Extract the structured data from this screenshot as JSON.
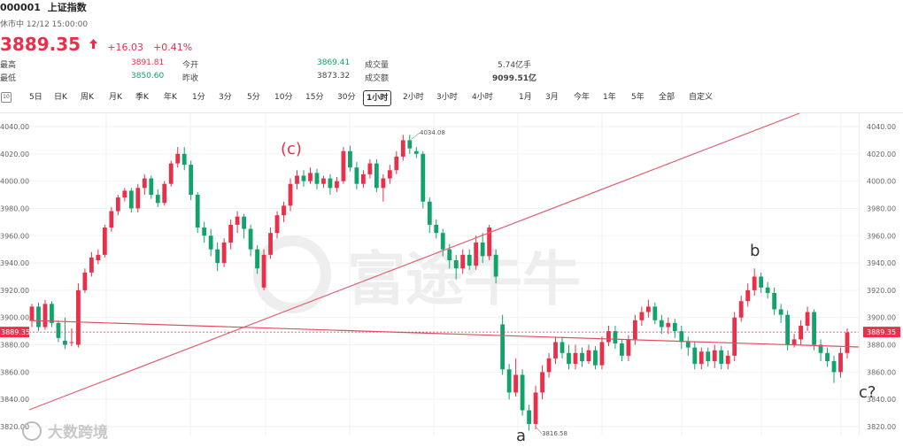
{
  "header": {
    "code": "000001",
    "name": "上证指数",
    "status": "休市中 12/12 15:00:00",
    "price": "3889.35",
    "change": "+16.03",
    "change_pct": "+0.41%",
    "arrow": "arrow-up-icon"
  },
  "stats": {
    "high_label": "最高",
    "high_value": "3891.81",
    "low_label": "最低",
    "low_value": "3850.60",
    "open_label": "今开",
    "open_value": "3869.41",
    "prev_label": "昨收",
    "prev_value": "3873.32",
    "volume_label": "成交量",
    "volume_value": "5.74亿手",
    "amount_label": "成交额",
    "amount_value": "9099.51亿"
  },
  "tabs": [
    "5日",
    "日K",
    "周K",
    "月K",
    "季K",
    "年K",
    "1分",
    "3分",
    "5分",
    "10分",
    "15分",
    "30分",
    "1小时",
    "2小时",
    "3小时",
    "4小时",
    "1月",
    "3月",
    "今年",
    "1年",
    "5年",
    "全部",
    "自定义"
  ],
  "active_tab": "1小时",
  "watermark": {
    "main": "富途牛牛",
    "bottom": "大数跨境"
  },
  "chart_data": {
    "type": "candlestick",
    "ylim": [
      3816,
      4045
    ],
    "yticks": [
      4040.0,
      4020.0,
      4000.0,
      3980.0,
      3960.0,
      3940.0,
      3920.0,
      3900.0,
      3880.0,
      3860.0,
      3840.0,
      3820.0
    ],
    "last_price_label": "3889.35",
    "high_marker": "4034.08",
    "low_marker": "3816.58",
    "annotations": [
      "(c)",
      "b",
      "a",
      "c?"
    ],
    "up_color": "#e8304a",
    "down_color": "#12a36a",
    "candles": [
      {
        "o": 3898,
        "c": 3908,
        "h": 3910,
        "l": 3893
      },
      {
        "o": 3908,
        "c": 3893,
        "h": 3911,
        "l": 3890
      },
      {
        "o": 3893,
        "c": 3910,
        "h": 3913,
        "l": 3891
      },
      {
        "o": 3910,
        "c": 3896,
        "h": 3912,
        "l": 3893
      },
      {
        "o": 3896,
        "c": 3885,
        "h": 3898,
        "l": 3882
      },
      {
        "o": 3883,
        "c": 3880,
        "h": 3900,
        "l": 3877
      },
      {
        "o": 3882,
        "c": 3882,
        "h": 3892,
        "l": 3879
      },
      {
        "o": 3880,
        "c": 3920,
        "h": 3925,
        "l": 3878
      },
      {
        "o": 3920,
        "c": 3933,
        "h": 3936,
        "l": 3918
      },
      {
        "o": 3933,
        "c": 3944,
        "h": 3948,
        "l": 3930
      },
      {
        "o": 3942,
        "c": 3946,
        "h": 3950,
        "l": 3939
      },
      {
        "o": 3946,
        "c": 3966,
        "h": 3968,
        "l": 3944
      },
      {
        "o": 3966,
        "c": 3978,
        "h": 3981,
        "l": 3963
      },
      {
        "o": 3978,
        "c": 3988,
        "h": 3990,
        "l": 3975
      },
      {
        "o": 3988,
        "c": 3993,
        "h": 3995,
        "l": 3985
      },
      {
        "o": 3993,
        "c": 3980,
        "h": 3995,
        "l": 3977
      },
      {
        "o": 3980,
        "c": 3995,
        "h": 3998,
        "l": 3977
      },
      {
        "o": 3995,
        "c": 4002,
        "h": 4005,
        "l": 3990
      },
      {
        "o": 4002,
        "c": 3990,
        "h": 4004,
        "l": 3987
      },
      {
        "o": 3990,
        "c": 3984,
        "h": 3994,
        "l": 3981
      },
      {
        "o": 3984,
        "c": 3998,
        "h": 4000,
        "l": 3982
      },
      {
        "o": 3998,
        "c": 4013,
        "h": 4015,
        "l": 3996
      },
      {
        "o": 4013,
        "c": 4020,
        "h": 4025,
        "l": 4010
      },
      {
        "o": 4020,
        "c": 4012,
        "h": 4025,
        "l": 4008
      },
      {
        "o": 4012,
        "c": 3990,
        "h": 4015,
        "l": 3986
      },
      {
        "o": 3990,
        "c": 3966,
        "h": 3992,
        "l": 3962
      },
      {
        "o": 3966,
        "c": 3960,
        "h": 3970,
        "l": 3955
      },
      {
        "o": 3960,
        "c": 3950,
        "h": 3965,
        "l": 3945
      },
      {
        "o": 3950,
        "c": 3940,
        "h": 3955,
        "l": 3934
      },
      {
        "o": 3940,
        "c": 3955,
        "h": 3958,
        "l": 3937
      },
      {
        "o": 3955,
        "c": 3968,
        "h": 3972,
        "l": 3950
      },
      {
        "o": 3968,
        "c": 3974,
        "h": 3978,
        "l": 3962
      },
      {
        "o": 3974,
        "c": 3965,
        "h": 3976,
        "l": 3958
      },
      {
        "o": 3965,
        "c": 3950,
        "h": 3968,
        "l": 3945
      },
      {
        "o": 3950,
        "c": 3936,
        "h": 3953,
        "l": 3932
      },
      {
        "o": 3922,
        "c": 3946,
        "h": 3950,
        "l": 3920
      },
      {
        "o": 3946,
        "c": 3962,
        "h": 3966,
        "l": 3943
      },
      {
        "o": 3962,
        "c": 3975,
        "h": 3978,
        "l": 3958
      },
      {
        "o": 3975,
        "c": 3982,
        "h": 3985,
        "l": 3970
      },
      {
        "o": 3982,
        "c": 3998,
        "h": 4002,
        "l": 3978
      },
      {
        "o": 3998,
        "c": 4004,
        "h": 4008,
        "l": 3994
      },
      {
        "o": 4004,
        "c": 4000,
        "h": 4008,
        "l": 3996
      },
      {
        "o": 4000,
        "c": 4006,
        "h": 4010,
        "l": 3998
      },
      {
        "o": 4006,
        "c": 3998,
        "h": 4009,
        "l": 3994
      },
      {
        "o": 3998,
        "c": 4002,
        "h": 4004,
        "l": 3995
      },
      {
        "o": 4002,
        "c": 3995,
        "h": 4005,
        "l": 3990
      },
      {
        "o": 3995,
        "c": 4000,
        "h": 4003,
        "l": 3992
      },
      {
        "o": 4000,
        "c": 4022,
        "h": 4025,
        "l": 3998
      },
      {
        "o": 4022,
        "c": 4010,
        "h": 4026,
        "l": 4007
      },
      {
        "o": 4010,
        "c": 3998,
        "h": 4014,
        "l": 3994
      },
      {
        "o": 3998,
        "c": 4005,
        "h": 4008,
        "l": 3995
      },
      {
        "o": 4005,
        "c": 4013,
        "h": 4016,
        "l": 4002
      },
      {
        "o": 4013,
        "c": 3995,
        "h": 4016,
        "l": 3992
      },
      {
        "o": 3995,
        "c": 4002,
        "h": 4005,
        "l": 3985
      },
      {
        "o": 4002,
        "c": 4008,
        "h": 4012,
        "l": 3998
      },
      {
        "o": 4008,
        "c": 4018,
        "h": 4022,
        "l": 4005
      },
      {
        "o": 4018,
        "c": 4030,
        "h": 4034,
        "l": 4015
      },
      {
        "o": 4030,
        "c": 4024,
        "h": 4034,
        "l": 4020
      },
      {
        "o": 4022,
        "c": 4020,
        "h": 4025,
        "l": 4017
      },
      {
        "o": 4020,
        "c": 3985,
        "h": 4022,
        "l": 3980
      },
      {
        "o": 3985,
        "c": 3968,
        "h": 3988,
        "l": 3962
      },
      {
        "o": 3968,
        "c": 3962,
        "h": 3972,
        "l": 3958
      },
      {
        "o": 3962,
        "c": 3950,
        "h": 3965,
        "l": 3945
      },
      {
        "o": 3950,
        "c": 3942,
        "h": 3954,
        "l": 3936
      },
      {
        "o": 3942,
        "c": 3936,
        "h": 3946,
        "l": 3928
      },
      {
        "o": 3936,
        "c": 3946,
        "h": 3950,
        "l": 3932
      },
      {
        "o": 3946,
        "c": 3938,
        "h": 3950,
        "l": 3935
      },
      {
        "o": 3938,
        "c": 3955,
        "h": 3960,
        "l": 3935
      },
      {
        "o": 3955,
        "c": 3945,
        "h": 3962,
        "l": 3940
      },
      {
        "o": 3945,
        "c": 3966,
        "h": 3968,
        "l": 3942
      },
      {
        "o": 3946,
        "c": 3930,
        "h": 3950,
        "l": 3925
      },
      {
        "o": 3895,
        "c": 3862,
        "h": 3902,
        "l": 3858
      },
      {
        "o": 3862,
        "c": 3845,
        "h": 3866,
        "l": 3840
      },
      {
        "o": 3845,
        "c": 3858,
        "h": 3870,
        "l": 3842
      },
      {
        "o": 3858,
        "c": 3832,
        "h": 3862,
        "l": 3828
      },
      {
        "o": 3832,
        "c": 3822,
        "h": 3836,
        "l": 3817
      },
      {
        "o": 3822,
        "c": 3845,
        "h": 3850,
        "l": 3818
      },
      {
        "o": 3845,
        "c": 3860,
        "h": 3865,
        "l": 3840
      },
      {
        "o": 3860,
        "c": 3870,
        "h": 3874,
        "l": 3856
      },
      {
        "o": 3870,
        "c": 3882,
        "h": 3886,
        "l": 3866
      },
      {
        "o": 3882,
        "c": 3874,
        "h": 3886,
        "l": 3870
      },
      {
        "o": 3874,
        "c": 3866,
        "h": 3880,
        "l": 3862
      },
      {
        "o": 3866,
        "c": 3874,
        "h": 3880,
        "l": 3862
      },
      {
        "o": 3874,
        "c": 3868,
        "h": 3878,
        "l": 3864
      },
      {
        "o": 3868,
        "c": 3876,
        "h": 3880,
        "l": 3866
      },
      {
        "o": 3876,
        "c": 3865,
        "h": 3879,
        "l": 3862
      },
      {
        "o": 3865,
        "c": 3882,
        "h": 3886,
        "l": 3862
      },
      {
        "o": 3882,
        "c": 3890,
        "h": 3894,
        "l": 3879
      },
      {
        "o": 3890,
        "c": 3881,
        "h": 3894,
        "l": 3877
      },
      {
        "o": 3881,
        "c": 3872,
        "h": 3884,
        "l": 3868
      },
      {
        "o": 3872,
        "c": 3884,
        "h": 3887,
        "l": 3868
      },
      {
        "o": 3884,
        "c": 3898,
        "h": 3902,
        "l": 3880
      },
      {
        "o": 3898,
        "c": 3904,
        "h": 3908,
        "l": 3894
      },
      {
        "o": 3904,
        "c": 3908,
        "h": 3913,
        "l": 3900
      },
      {
        "o": 3908,
        "c": 3898,
        "h": 3911,
        "l": 3895
      },
      {
        "o": 3898,
        "c": 3893,
        "h": 3902,
        "l": 3888
      },
      {
        "o": 3893,
        "c": 3896,
        "h": 3900,
        "l": 3888
      },
      {
        "o": 3896,
        "c": 3890,
        "h": 3899,
        "l": 3885
      },
      {
        "o": 3890,
        "c": 3882,
        "h": 3894,
        "l": 3877
      },
      {
        "o": 3882,
        "c": 3878,
        "h": 3886,
        "l": 3872
      },
      {
        "o": 3878,
        "c": 3866,
        "h": 3882,
        "l": 3862
      },
      {
        "o": 3866,
        "c": 3875,
        "h": 3878,
        "l": 3862
      },
      {
        "o": 3875,
        "c": 3868,
        "h": 3878,
        "l": 3864
      },
      {
        "o": 3868,
        "c": 3876,
        "h": 3880,
        "l": 3863
      },
      {
        "o": 3876,
        "c": 3866,
        "h": 3879,
        "l": 3862
      },
      {
        "o": 3866,
        "c": 3872,
        "h": 3876,
        "l": 3862
      },
      {
        "o": 3872,
        "c": 3900,
        "h": 3904,
        "l": 3868
      },
      {
        "o": 3900,
        "c": 3912,
        "h": 3916,
        "l": 3897
      },
      {
        "o": 3912,
        "c": 3920,
        "h": 3925,
        "l": 3908
      },
      {
        "o": 3920,
        "c": 3930,
        "h": 3936,
        "l": 3916
      },
      {
        "o": 3930,
        "c": 3922,
        "h": 3933,
        "l": 3918
      },
      {
        "o": 3922,
        "c": 3918,
        "h": 3926,
        "l": 3914
      },
      {
        "o": 3918,
        "c": 3906,
        "h": 3922,
        "l": 3902
      },
      {
        "o": 3906,
        "c": 3902,
        "h": 3910,
        "l": 3896
      },
      {
        "o": 3902,
        "c": 3880,
        "h": 3905,
        "l": 3876
      },
      {
        "o": 3880,
        "c": 3884,
        "h": 3888,
        "l": 3878
      },
      {
        "o": 3884,
        "c": 3894,
        "h": 3898,
        "l": 3880
      },
      {
        "o": 3894,
        "c": 3904,
        "h": 3908,
        "l": 3890
      },
      {
        "o": 3904,
        "c": 3880,
        "h": 3906,
        "l": 3876
      },
      {
        "o": 3880,
        "c": 3874,
        "h": 3884,
        "l": 3868
      },
      {
        "o": 3874,
        "c": 3868,
        "h": 3878,
        "l": 3864
      },
      {
        "o": 3868,
        "c": 3860,
        "h": 3872,
        "l": 3852
      },
      {
        "o": 3860,
        "c": 3874,
        "h": 3878,
        "l": 3856
      },
      {
        "o": 3874,
        "c": 3889,
        "h": 3892,
        "l": 3870
      }
    ]
  }
}
